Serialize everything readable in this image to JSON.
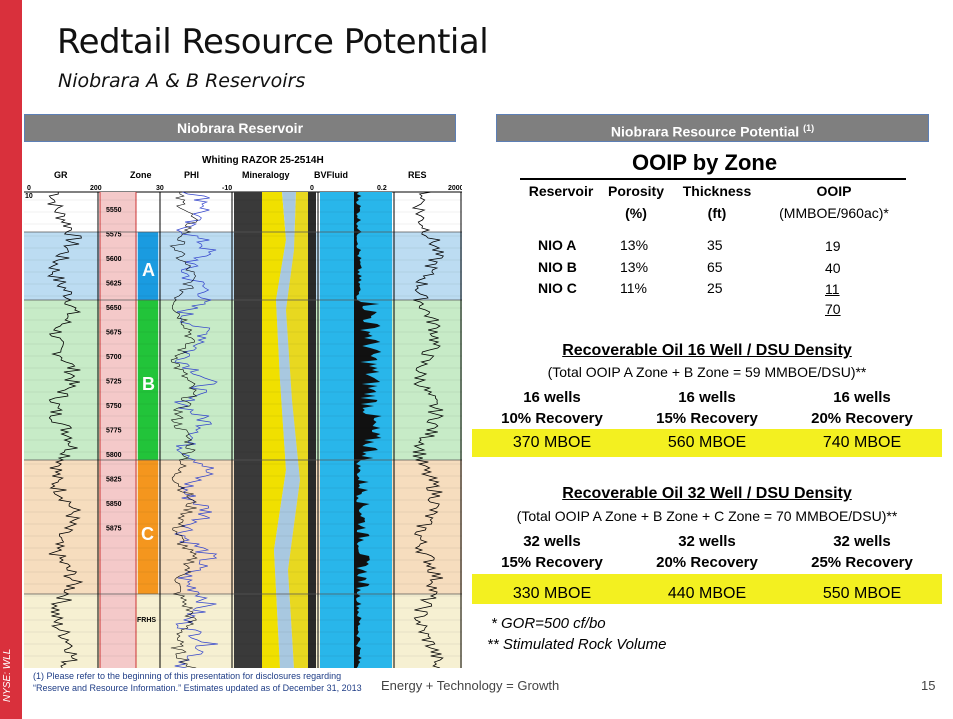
{
  "side_label": "NYSE: WLL",
  "title": "Redtail Resource Potential",
  "subtitle": "Niobrara A & B Reservoirs",
  "left_header": "Niobrara  Reservoir",
  "right_header": "Niobrara  Resource Potential",
  "right_header_sup": "(1)",
  "log": {
    "well_title": "Whiting RAZOR 25-2514H",
    "tracks": [
      "GR",
      "Zone",
      "PHI",
      "Mineralogy",
      "BVFluid",
      "RES"
    ],
    "scale_gr": [
      "0",
      "200"
    ],
    "scale_phi": [
      "30",
      "-10"
    ],
    "scale_bv": [
      "0",
      "0.2"
    ],
    "scale_res": [
      "0",
      "2000"
    ],
    "scale_misc": "10",
    "depths": [
      "5550",
      "5575",
      "5600",
      "5625",
      "5650",
      "5675",
      "5700",
      "5725",
      "5750",
      "5775",
      "5800",
      "5825",
      "5850",
      "5875"
    ],
    "zones": [
      "A",
      "B",
      "C"
    ],
    "frhs": "FRHS",
    "colors": {
      "zone_a": "#1a9be0",
      "zone_b": "#22c43a",
      "zone_c": "#f4961e",
      "band_a": "#bcdcf2",
      "band_b": "#c7ebc7",
      "band_c": "#f6ddbe",
      "band_d": "#f6f0d2"
    }
  },
  "ooip": {
    "title": "OOIP by Zone",
    "headers": [
      {
        "l1": "Reservoir",
        "l2": ""
      },
      {
        "l1": "Porosity",
        "l2": "(%)"
      },
      {
        "l1": "Thickness",
        "l2": "(ft)"
      },
      {
        "l1": "OOIP",
        "l2": "(MMBOE/960ac)*"
      }
    ],
    "rows": [
      {
        "name": "NIO A",
        "porosity": "13%",
        "thickness": "35",
        "ooip": "19"
      },
      {
        "name": "NIO B",
        "porosity": "13%",
        "thickness": "65",
        "ooip": "40"
      },
      {
        "name": "NIO C",
        "porosity": "11%",
        "thickness": "25",
        "ooip": "11"
      }
    ],
    "total": "70"
  },
  "sec16": {
    "title": "Recoverable Oil 16 Well / DSU Density",
    "subtitle": "(Total OOIP A Zone + B Zone = 59 MMBOE/DSU)**",
    "cols": [
      {
        "wells": "16 wells",
        "rec": "10% Recovery",
        "value": "370 MBOE"
      },
      {
        "wells": "16 wells",
        "rec": "15% Recovery",
        "value": "560 MBOE"
      },
      {
        "wells": "16 wells",
        "rec": "20% Recovery",
        "value": "740 MBOE"
      }
    ]
  },
  "sec32": {
    "title": "Recoverable Oil 32 Well / DSU Density",
    "subtitle": "(Total OOIP A Zone + B Zone + C Zone = 70 MMBOE/DSU)**",
    "cols": [
      {
        "wells": "32 wells",
        "rec": "15% Recovery",
        "value": "330 MBOE"
      },
      {
        "wells": "32 wells",
        "rec": "20% Recovery",
        "value": "440 MBOE"
      },
      {
        "wells": "32 wells",
        "rec": "25% Recovery",
        "value": "550 MBOE"
      }
    ]
  },
  "notes": [
    "*  GOR=500 cf/bo",
    "** Stimulated Rock Volume"
  ],
  "footnote": "(1) Please refer to the beginning of this presentation for disclosures regarding “Reserve and Resource Information.”  Estimates updated as of December 31, 2013",
  "footer_center": "Energy + Technology = Growth",
  "page_number": "15",
  "colors": {
    "accent_red": "#d9303c",
    "header_gray": "#7f7f7f",
    "highlight_yellow": "#f3f020"
  }
}
